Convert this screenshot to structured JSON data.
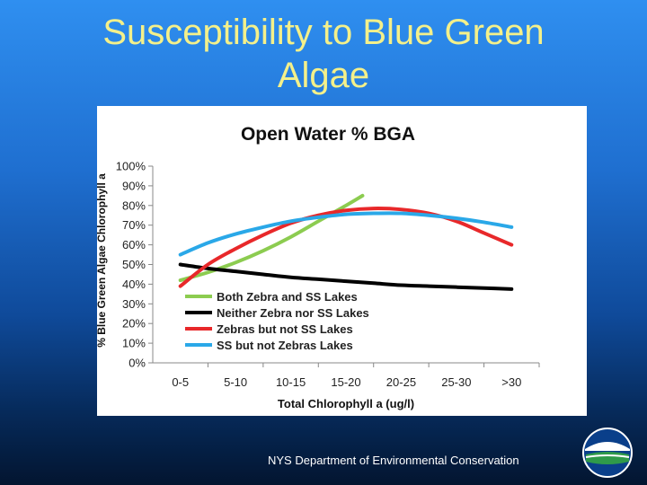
{
  "slide": {
    "title_line1": "Susceptibility to Blue Green",
    "title_line2": "Algae",
    "footer": "NYS Department of Environmental  Conservation"
  },
  "colors": {
    "title": "#f4f08a",
    "background_top": "#2f8ff0",
    "background_bottom": "#031530"
  },
  "logo": {
    "icon": "nys-dec-logo-icon"
  },
  "chart_data": {
    "type": "line",
    "title": "Open Water % BGA",
    "xlabel": "Total Chlorophyll  a (ug/l)",
    "ylabel": "% Blue Green Algae Chlorophyll a",
    "categories": [
      "0-5",
      "5-10",
      "10-15",
      "15-20",
      "20-25",
      "25-30",
      ">30"
    ],
    "ylim": [
      0,
      100
    ],
    "yticks": [
      "0%",
      "10%",
      "20%",
      "30%",
      "40%",
      "50%",
      "60%",
      "70%",
      "80%",
      "90%",
      "100%"
    ],
    "legend_position": "bottom-left inside plot",
    "grid": false,
    "series": [
      {
        "name": "Both Zebra and SS Lakes",
        "color": "#8ccc50",
        "x": [
          0,
          0.5,
          1,
          1.5,
          2,
          2.5,
          3,
          3.3
        ],
        "values": [
          42,
          46,
          51,
          57,
          64,
          72,
          80,
          85
        ]
      },
      {
        "name": "Neither Zebra nor SS Lakes",
        "color": "#000000",
        "x": [
          0,
          0.5,
          1,
          1.5,
          2,
          2.5,
          3,
          3.5,
          4,
          4.5,
          5,
          5.5,
          6
        ],
        "values": [
          50,
          48,
          46.5,
          45,
          43.5,
          42.5,
          41.5,
          40.5,
          39.5,
          39,
          38.5,
          38,
          37.5
        ]
      },
      {
        "name": "Zebras but not SS Lakes",
        "color": "#e8282a",
        "x": [
          0,
          0.5,
          1,
          1.5,
          2,
          2.5,
          3,
          3.5,
          4,
          4.5,
          5,
          5.5,
          6
        ],
        "values": [
          39,
          50,
          58,
          65,
          71,
          75,
          77.5,
          78.5,
          78,
          76,
          72,
          66,
          60
        ]
      },
      {
        "name": "SS but not Zebras Lakes",
        "color": "#2aa8e8",
        "x": [
          0,
          0.5,
          1,
          1.5,
          2,
          2.5,
          3,
          3.5,
          4,
          4.5,
          5,
          5.5,
          6
        ],
        "values": [
          55,
          61,
          65.5,
          69,
          72,
          74,
          75.5,
          76,
          76,
          75,
          73.5,
          71.5,
          69
        ]
      }
    ]
  }
}
